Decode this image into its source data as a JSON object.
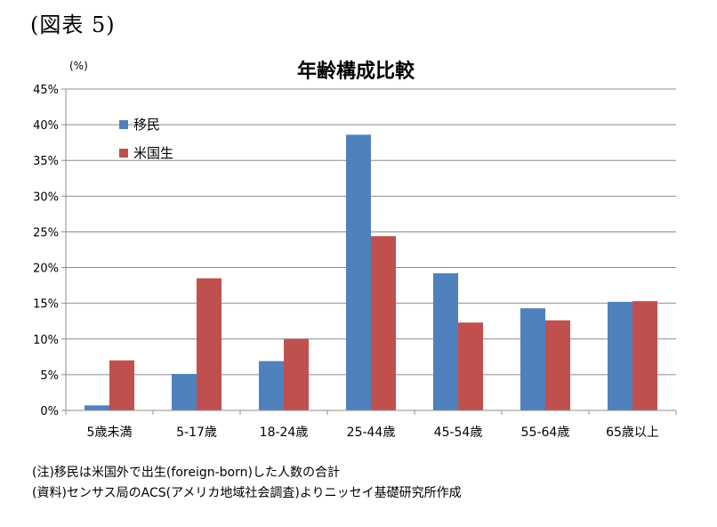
{
  "figure_label": "(図表 5)",
  "chart_data": {
    "type": "bar",
    "title": "年齢構成比較",
    "ylabel": "(%)",
    "xlabel": "",
    "ylim": [
      0,
      45
    ],
    "yticks": [
      "0%",
      "5%",
      "10%",
      "15%",
      "20%",
      "25%",
      "30%",
      "35%",
      "40%",
      "45%"
    ],
    "grid": true,
    "legend_position": "top-left",
    "categories": [
      "5歳未満",
      "5-17歳",
      "18-24歳",
      "25-44歳",
      "45-54歳",
      "55-64歳",
      "65歳以上"
    ],
    "series": [
      {
        "name": "移民",
        "color": "#4f81bd",
        "values": [
          0.7,
          5.1,
          6.9,
          38.6,
          19.2,
          14.3,
          15.2
        ]
      },
      {
        "name": "米国生",
        "color": "#c0504d",
        "values": [
          7.0,
          18.5,
          10.0,
          24.4,
          12.3,
          12.6,
          15.3
        ]
      }
    ]
  },
  "notes": [
    "(注)移民は米国外で出生(foreign-born)した人数の合計",
    "(資料)センサス局のACS(アメリカ地域社会調査)よりニッセイ基礎研究所作成"
  ]
}
